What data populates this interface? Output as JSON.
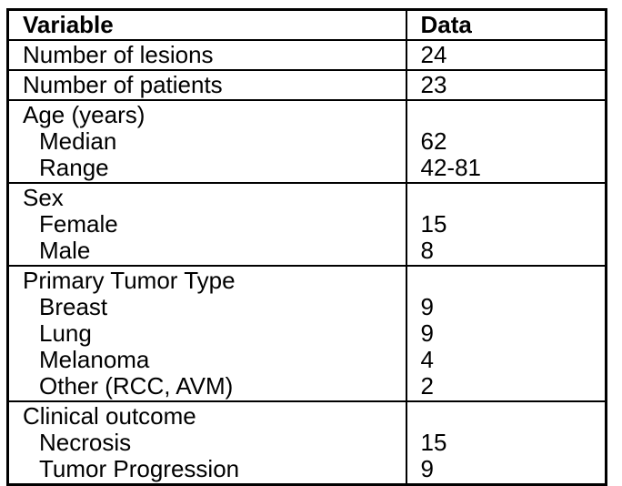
{
  "page": {
    "background_color": "#ffffff",
    "border_color": "#000000",
    "text_color": "#000000"
  },
  "table": {
    "header": {
      "variable": "Variable",
      "data": "Data"
    },
    "rows": [
      {
        "lines": [
          {
            "label": "Number of lesions",
            "value": "24",
            "indent": false
          }
        ]
      },
      {
        "lines": [
          {
            "label": "Number of patients",
            "value": "23",
            "indent": false
          }
        ]
      },
      {
        "lines": [
          {
            "label": "Age (years)",
            "value": "",
            "indent": false
          },
          {
            "label": "Median",
            "value": "62",
            "indent": true
          },
          {
            "label": "Range",
            "value": "42-81",
            "indent": true
          }
        ]
      },
      {
        "lines": [
          {
            "label": "Sex",
            "value": "",
            "indent": false
          },
          {
            "label": "Female",
            "value": "15",
            "indent": true
          },
          {
            "label": "Male",
            "value": "8",
            "indent": true
          }
        ]
      },
      {
        "lines": [
          {
            "label": "Primary Tumor Type",
            "value": "",
            "indent": false
          },
          {
            "label": "Breast",
            "value": "9",
            "indent": true
          },
          {
            "label": "Lung",
            "value": "9",
            "indent": true
          },
          {
            "label": "Melanoma",
            "value": "4",
            "indent": true
          },
          {
            "label": "Other (RCC, AVM)",
            "value": "2",
            "indent": true
          }
        ]
      },
      {
        "lines": [
          {
            "label": "Clinical outcome",
            "value": "",
            "indent": false
          },
          {
            "label": "Necrosis",
            "value": "15",
            "indent": true
          },
          {
            "label": "Tumor Progression",
            "value": "9",
            "indent": true
          }
        ]
      }
    ]
  }
}
